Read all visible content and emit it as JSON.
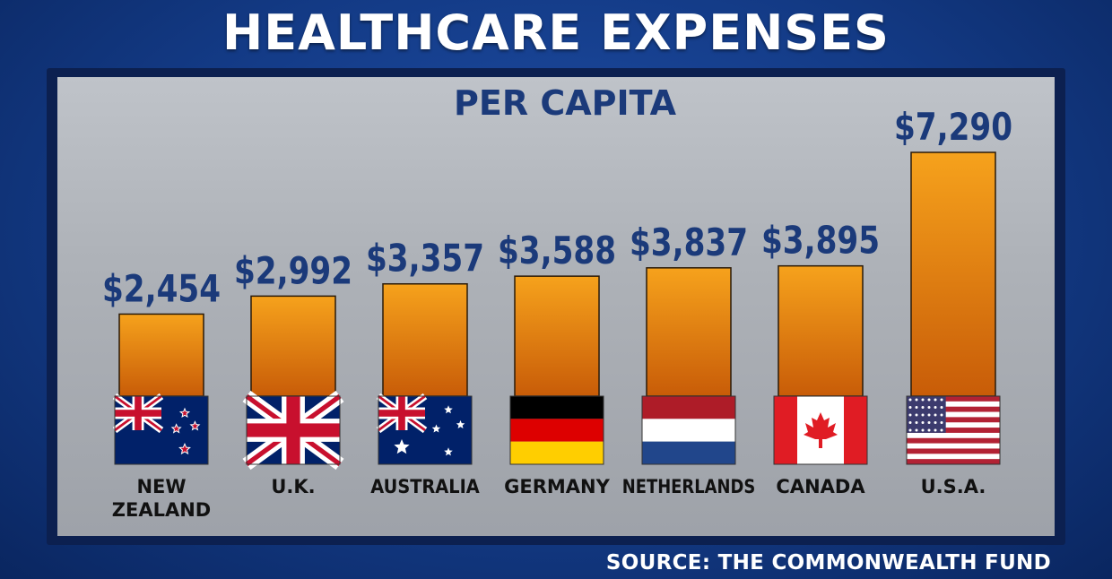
{
  "title": "HEALTHCARE EXPENSES",
  "source": "SOURCE: THE COMMONWEALTH FUND",
  "colors": {
    "bar_top": "#f6a21c",
    "bar_bottom": "#c85c08",
    "value_label": "#1b3a7a",
    "background": "#133a85"
  },
  "chart_data": {
    "type": "bar",
    "title": "PER CAPITA",
    "categories": [
      "NEW ZEALAND",
      "U.K.",
      "AUSTRALIA",
      "GERMANY",
      "NETHERLANDS",
      "CANADA",
      "U.S.A."
    ],
    "category_lines": [
      [
        "NEW",
        "ZEALAND"
      ],
      [
        "U.K."
      ],
      [
        "AUSTRALIA"
      ],
      [
        "GERMANY"
      ],
      [
        "NETHERLANDS"
      ],
      [
        "CANADA"
      ],
      [
        "U.S.A."
      ]
    ],
    "values": [
      2454,
      2992,
      3357,
      3588,
      3837,
      3895,
      7290
    ],
    "value_labels": [
      "$2,454",
      "$2,992",
      "$3,357",
      "$3,588",
      "$3,837",
      "$3,895",
      "$7,290"
    ],
    "flags": [
      "new-zealand-flag",
      "uk-flag",
      "australia-flag",
      "germany-flag",
      "netherlands-flag",
      "canada-flag",
      "usa-flag"
    ],
    "xlabel": "",
    "ylabel": "",
    "ylim": [
      0,
      7290
    ],
    "grid": false,
    "legend": "none"
  }
}
